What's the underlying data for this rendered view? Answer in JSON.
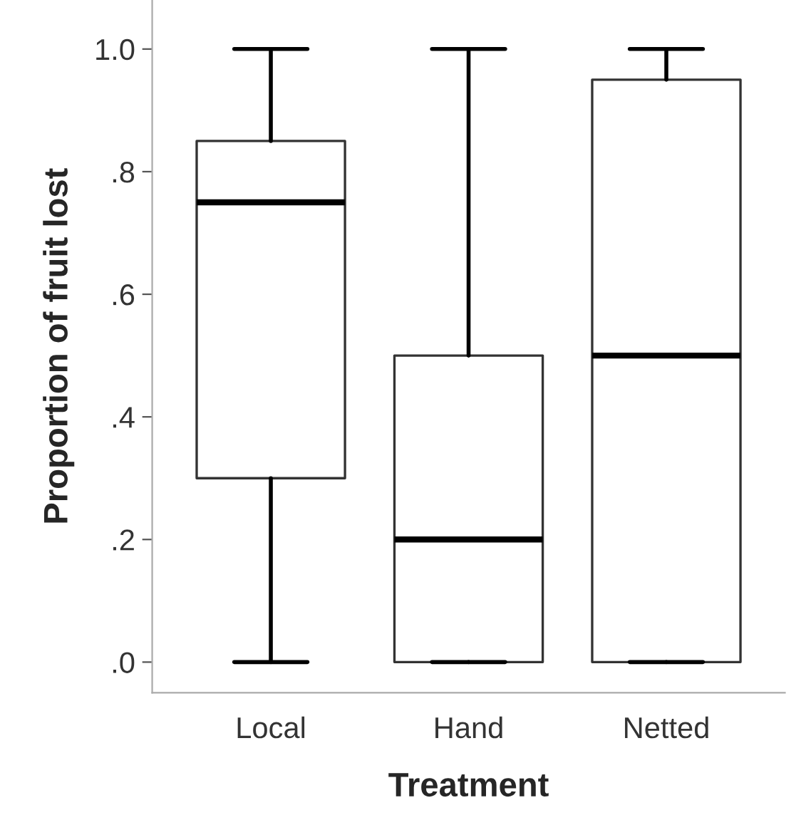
{
  "chart_data": {
    "type": "box",
    "xlabel": "Treatment",
    "ylabel": "Proportion of fruit lost",
    "categories": [
      "Local",
      "Hand",
      "Netted"
    ],
    "boxes": [
      {
        "low": 0,
        "q1": 0.3,
        "median": 0.75,
        "q3": 0.85,
        "high": 1.0
      },
      {
        "low": 0,
        "q1": 0,
        "median": 0.2,
        "q3": 0.5,
        "high": 1.0
      },
      {
        "low": 0,
        "q1": 0,
        "median": 0.5,
        "q3": 0.95,
        "high": 1.0
      }
    ],
    "ylim": [
      -0.05,
      1.08
    ],
    "yticks": [
      {
        "value": 0,
        "label": ".0"
      },
      {
        "value": 0.2,
        "label": ".2"
      },
      {
        "value": 0.4,
        "label": ".4"
      },
      {
        "value": 0.6,
        "label": ".6"
      },
      {
        "value": 0.8,
        "label": ".8"
      },
      {
        "value": 1.0,
        "label": "1.0"
      }
    ],
    "grid": false,
    "legend": false
  }
}
